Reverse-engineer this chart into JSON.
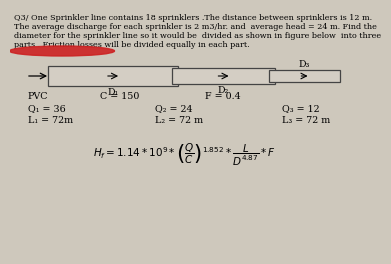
{
  "title_line1": "Q3/ One Sprinkler line contains 18 sprinklers .The distance between sprinklers is 12 m.",
  "title_line2": "The average discharge for each sprinkler is 2 m3/hr. and  average head = 24 m. Find the",
  "title_line3": "diameter for the sprinkler line so it would be  divided as shown in figure below  into three",
  "title_line4": "parts . Friction losses will be divided equally in each part.",
  "bg_color": "#cec8bc",
  "pipe_face": "#d4cec4",
  "pipe_edge": "#444444",
  "label_D1": "D₁",
  "label_D2": "D₂",
  "label_D3": "D₃",
  "pvc_label": "PVC",
  "c_label": "C = 150",
  "f_label": "F = 0.4",
  "Q1_label": "Q₁ = 36",
  "Q2_label": "Q₂ = 24",
  "Q3_label": "Q₃ = 12",
  "L1_label": "L₁ = 72m",
  "L2_label": "L₂ = 72 m",
  "L3_label": "L₃ = 72 m",
  "red_mark_color": "#cc2222",
  "title_fs": 5.8,
  "label_fs": 6.8,
  "data_fs": 6.8,
  "formula_fs": 7.5
}
